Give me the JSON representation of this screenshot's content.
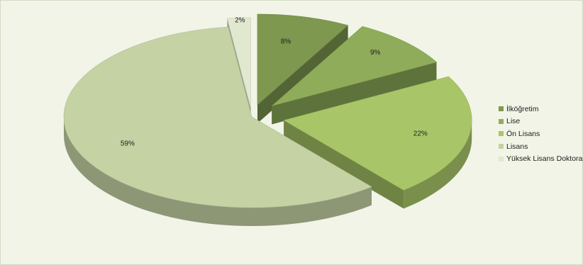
{
  "chart_data": {
    "type": "pie",
    "variant": "3d-exploded",
    "legend_position": "right",
    "slices": [
      {
        "label": "İlköğretim",
        "value": 8,
        "value_label": "8%",
        "color": "#7e9850"
      },
      {
        "label": "Lise",
        "value": 9,
        "value_label": "9%",
        "color": "#8fac5a"
      },
      {
        "label": "Ön Lisans",
        "value": 22,
        "value_label": "22%",
        "color": "#a8c668"
      },
      {
        "label": "Lisans",
        "value": 59,
        "value_label": "59%",
        "color": "#c4d2a4"
      },
      {
        "label": "Yüksek Lisans Doktora",
        "value": 2,
        "value_label": "2%",
        "color": "#e1e8d0"
      }
    ]
  }
}
